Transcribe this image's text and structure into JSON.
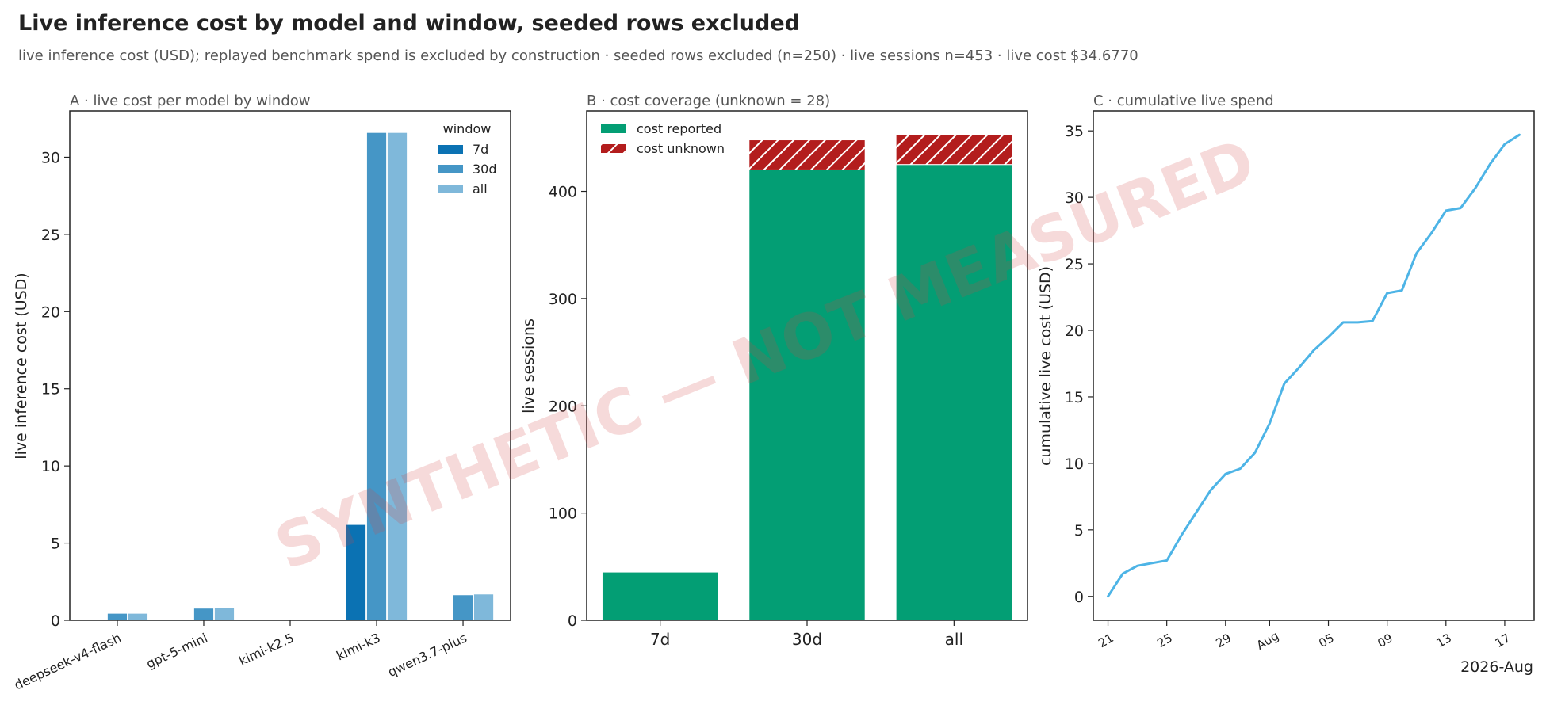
{
  "title": "Live inference cost by model and window, seeded rows excluded",
  "subtitle": "live inference cost (USD); replayed benchmark spend is excluded by construction · seeded rows excluded (n=250) · live sessions n=453 · live cost $34.6770",
  "watermark": "SYNTHETIC — NOT MEASURED",
  "colors": {
    "w7d": "#0b72b3",
    "w30d": "#4596c6",
    "wall": "#7fb8da",
    "reported": "#039e74",
    "unknown": "#b31d1d",
    "cumulative": "#4db4e6",
    "watermark": "#d44848"
  },
  "chart_data": [
    {
      "type": "bar",
      "panel_title": "A · live cost per model by window",
      "ylabel": "live inference cost (USD)",
      "categories": [
        "deepseek-v4-flash",
        "gpt-5-mini",
        "kimi-k2.5",
        "kimi-k3",
        "qwen3.7-plus"
      ],
      "legend_title": "window",
      "legend_position": "top-right",
      "series": [
        {
          "name": "7d",
          "values": [
            0.0,
            0.0,
            0.0,
            6.2,
            0.0
          ]
        },
        {
          "name": "30d",
          "values": [
            0.45,
            0.78,
            0.0,
            31.6,
            1.65
          ]
        },
        {
          "name": "all",
          "values": [
            0.45,
            0.82,
            0.0,
            31.6,
            1.7
          ]
        }
      ],
      "ylim": [
        0,
        33
      ],
      "yticks": [
        0,
        5,
        10,
        15,
        20,
        25,
        30
      ]
    },
    {
      "type": "bar",
      "stacked": true,
      "panel_title": "B · cost coverage (unknown = 28)",
      "ylabel": "live sessions",
      "categories": [
        "7d",
        "30d",
        "all"
      ],
      "legend_position": "top-left",
      "series": [
        {
          "name": "cost reported",
          "values": [
            45,
            420,
            425
          ]
        },
        {
          "name": "cost unknown",
          "values": [
            0,
            28,
            28
          ]
        }
      ],
      "ylim": [
        0,
        475
      ],
      "yticks": [
        0,
        100,
        200,
        300,
        400
      ]
    },
    {
      "type": "line",
      "panel_title": "C · cumulative live spend",
      "ylabel": "cumulative live cost (USD)",
      "xlabel": "2026-Aug",
      "xtick_labels": [
        "21",
        "25",
        "29",
        "Aug",
        "05",
        "09",
        "13",
        "17"
      ],
      "xtick_dates": [
        "2026-07-21",
        "2026-07-25",
        "2026-07-29",
        "2026-08-01",
        "2026-08-05",
        "2026-08-09",
        "2026-08-13",
        "2026-08-17"
      ],
      "x": [
        "2026-07-21",
        "2026-07-22",
        "2026-07-23",
        "2026-07-24",
        "2026-07-25",
        "2026-07-26",
        "2026-07-27",
        "2026-07-28",
        "2026-07-29",
        "2026-07-30",
        "2026-07-31",
        "2026-08-01",
        "2026-08-02",
        "2026-08-03",
        "2026-08-04",
        "2026-08-05",
        "2026-08-06",
        "2026-08-07",
        "2026-08-08",
        "2026-08-09",
        "2026-08-10",
        "2026-08-11",
        "2026-08-12",
        "2026-08-13",
        "2026-08-14",
        "2026-08-15",
        "2026-08-16",
        "2026-08-17",
        "2026-08-18"
      ],
      "y": [
        0.0,
        1.7,
        2.3,
        2.5,
        2.7,
        4.6,
        6.3,
        8.0,
        9.2,
        9.6,
        10.8,
        13.0,
        16.0,
        17.2,
        18.5,
        19.5,
        20.6,
        20.6,
        20.7,
        22.8,
        23.0,
        25.8,
        27.3,
        29.0,
        29.2,
        30.7,
        32.5,
        34.0,
        34.7
      ],
      "ylim": [
        -1.8,
        36.5
      ],
      "yticks": [
        0,
        5,
        10,
        15,
        20,
        25,
        30,
        35
      ]
    }
  ]
}
